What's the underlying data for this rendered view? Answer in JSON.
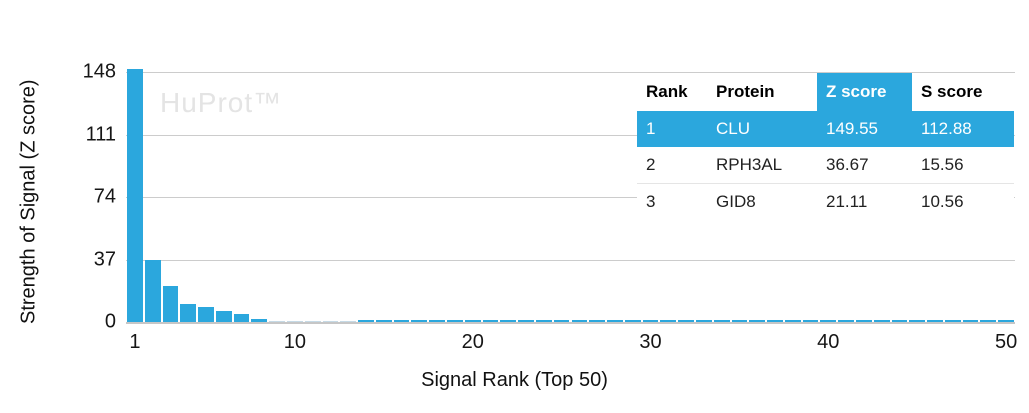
{
  "watermark": "HuProt™",
  "chart_data": {
    "type": "bar",
    "title": "",
    "xlabel": "Signal Rank (Top 50)",
    "ylabel": "Strength of Signal (Z score)",
    "x_ticks": [
      1,
      10,
      20,
      30,
      40,
      50
    ],
    "y_ticks": [
      148,
      111,
      74,
      37,
      0
    ],
    "ylim": [
      0,
      148
    ],
    "x_range": [
      1,
      50
    ],
    "grid": "horizontal",
    "legend": "none",
    "values": [
      149.55,
      36.67,
      21.11,
      10.4,
      8.7,
      6.5,
      5.0,
      2.0,
      0.8,
      0.7,
      0.65,
      0.6,
      0.6,
      1.0,
      1.0,
      1.0,
      1.0,
      1.0,
      1.0,
      1.0,
      1.0,
      1.0,
      1.0,
      1.0,
      1.0,
      1.0,
      1.0,
      1.0,
      1.0,
      1.0,
      1.0,
      1.0,
      1.0,
      1.0,
      1.0,
      1.0,
      1.0,
      1.0,
      1.0,
      1.0,
      1.0,
      1.0,
      1.0,
      1.0,
      1.0,
      1.0,
      1.0,
      1.0,
      1.0,
      1.0
    ],
    "light_bar_ranks": [
      9,
      10,
      11,
      12,
      13
    ],
    "colors": {
      "bar": "#2ba7dd",
      "bar_light": "#c6dae6",
      "gridline": "#cccccc",
      "axis_line": "#c6c6c6",
      "watermark_text": "#e4e4e4"
    }
  },
  "table": {
    "columns": [
      "Rank",
      "Protein",
      "Z score",
      "S score"
    ],
    "highlight_column": "Z score",
    "highlight_color": "#2ba7dd",
    "rows": [
      {
        "rank": "1",
        "protein": "CLU",
        "z_score": "149.55",
        "s_score": "112.88",
        "highlight": true
      },
      {
        "rank": "2",
        "protein": "RPH3AL",
        "z_score": "36.67",
        "s_score": "15.56",
        "highlight": false
      },
      {
        "rank": "3",
        "protein": "GID8",
        "z_score": "21.11",
        "s_score": "10.56",
        "highlight": false
      }
    ]
  }
}
